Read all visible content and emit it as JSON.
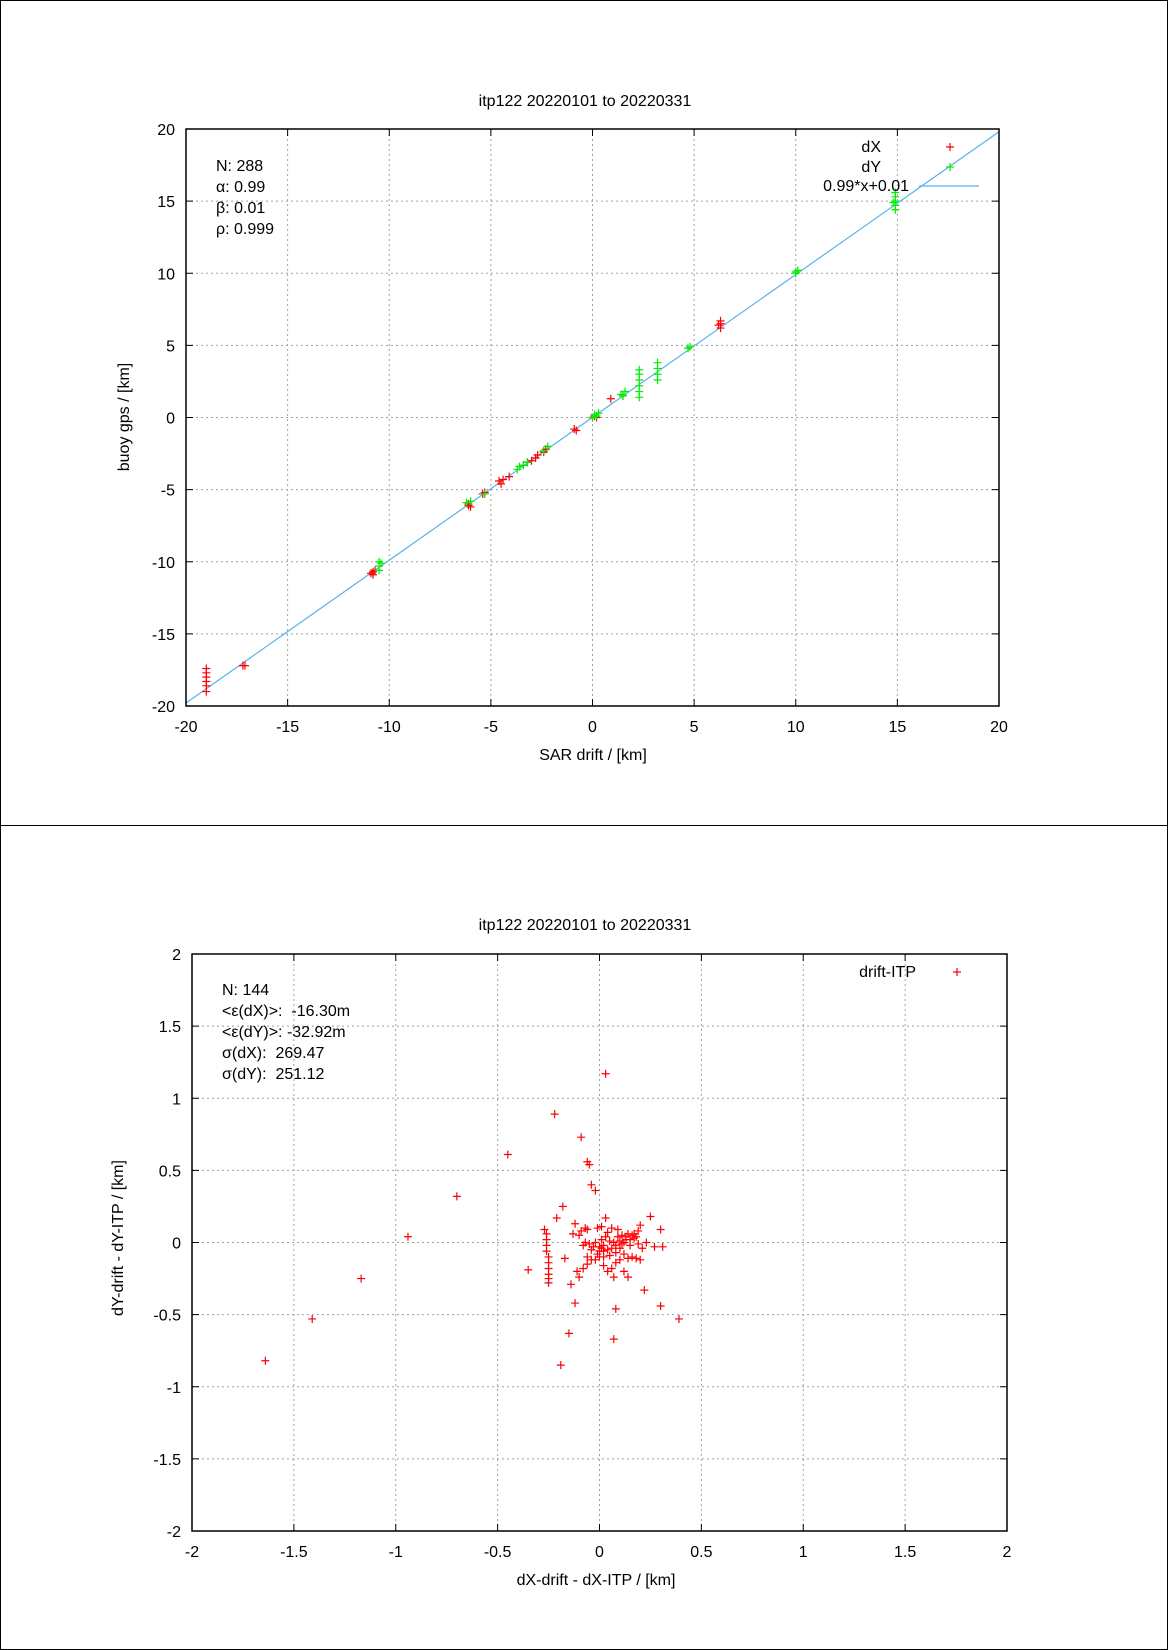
{
  "chart_data": [
    {
      "type": "scatter",
      "title": "itp122 20220101 to 20220331",
      "xlabel": "SAR drift / [km]",
      "ylabel": "buoy gps / [km]",
      "xlim": [
        -20,
        20
      ],
      "ylim": [
        -20,
        20
      ],
      "xticks": [
        -20,
        -15,
        -10,
        -5,
        0,
        5,
        10,
        15,
        20
      ],
      "yticks": [
        -20,
        -15,
        -10,
        -5,
        0,
        5,
        10,
        15,
        20
      ],
      "grid": true,
      "legend_position": "top-right",
      "annotations": [
        "N: 288",
        "α: 0.99",
        "β: 0.01",
        "ρ: 0.999"
      ],
      "fit": {
        "label": "0.99*x+0.01",
        "slope": 0.99,
        "intercept": 0.01,
        "color": "#56b4e9"
      },
      "series": [
        {
          "name": "dX",
          "color": "#ff0000",
          "points": [
            [
              -19.0,
              -19.0
            ],
            [
              -19.0,
              -18.6
            ],
            [
              -19.0,
              -18.3
            ],
            [
              -19.0,
              -18.0
            ],
            [
              -19.0,
              -17.7
            ],
            [
              -19.0,
              -17.4
            ],
            [
              -17.2,
              -17.2
            ],
            [
              -17.1,
              -17.2
            ],
            [
              -10.8,
              -10.7
            ],
            [
              -10.8,
              -10.9
            ],
            [
              -10.7,
              -10.6
            ],
            [
              -10.9,
              -10.8
            ],
            [
              -6.1,
              -6.1
            ],
            [
              -6.0,
              -6.2
            ],
            [
              -6.1,
              -6.0
            ],
            [
              -5.4,
              -5.3
            ],
            [
              -5.3,
              -5.2
            ],
            [
              -4.5,
              -4.6
            ],
            [
              -4.4,
              -4.3
            ],
            [
              -4.6,
              -4.4
            ],
            [
              -4.1,
              -4.1
            ],
            [
              -3.4,
              -3.3
            ],
            [
              -3.2,
              -3.1
            ],
            [
              -3.0,
              -3.0
            ],
            [
              -2.8,
              -2.8
            ],
            [
              -2.7,
              -2.6
            ],
            [
              -2.4,
              -2.4
            ],
            [
              -2.3,
              -2.2
            ],
            [
              -0.9,
              -0.8
            ],
            [
              -0.8,
              -0.9
            ],
            [
              0.0,
              0.0
            ],
            [
              0.1,
              0.1
            ],
            [
              0.2,
              0.0
            ],
            [
              0.9,
              1.3
            ],
            [
              1.5,
              1.5
            ],
            [
              6.3,
              6.2
            ],
            [
              6.3,
              6.5
            ],
            [
              6.3,
              6.7
            ],
            [
              6.2,
              6.4
            ]
          ]
        },
        {
          "name": "dY",
          "color": "#00ee00",
          "points": [
            [
              -10.5,
              -10.0
            ],
            [
              -10.5,
              -10.3
            ],
            [
              -10.5,
              -10.6
            ],
            [
              -10.4,
              -10.1
            ],
            [
              -6.2,
              -5.9
            ],
            [
              -6.0,
              -5.8
            ],
            [
              -5.3,
              -5.3
            ],
            [
              -3.7,
              -3.6
            ],
            [
              -3.6,
              -3.4
            ],
            [
              -3.4,
              -3.3
            ],
            [
              -3.2,
              -3.1
            ],
            [
              -2.4,
              -2.3
            ],
            [
              -2.2,
              -2.0
            ],
            [
              0.0,
              0.0
            ],
            [
              0.1,
              0.2
            ],
            [
              0.2,
              0.1
            ],
            [
              0.3,
              0.3
            ],
            [
              1.5,
              1.5
            ],
            [
              1.6,
              1.8
            ],
            [
              1.4,
              1.6
            ],
            [
              2.3,
              1.4
            ],
            [
              2.3,
              1.8
            ],
            [
              2.3,
              2.2
            ],
            [
              2.3,
              2.6
            ],
            [
              2.3,
              3.0
            ],
            [
              2.3,
              3.3
            ],
            [
              3.2,
              2.6
            ],
            [
              3.2,
              3.0
            ],
            [
              3.2,
              3.4
            ],
            [
              3.2,
              3.8
            ],
            [
              4.7,
              4.8
            ],
            [
              4.8,
              4.9
            ],
            [
              10.0,
              10.0
            ],
            [
              10.1,
              10.2
            ],
            [
              10.0,
              10.1
            ],
            [
              14.9,
              14.4
            ],
            [
              14.9,
              14.7
            ],
            [
              14.9,
              15.0
            ],
            [
              14.9,
              15.3
            ],
            [
              14.9,
              15.6
            ],
            [
              14.8,
              14.9
            ]
          ]
        }
      ]
    },
    {
      "type": "scatter",
      "title": "itp122 20220101 to 20220331",
      "xlabel": "dX-drift - dX-ITP / [km]",
      "ylabel": "dY-drift - dY-ITP / [km]",
      "xlim": [
        -2,
        2
      ],
      "ylim": [
        -2,
        2
      ],
      "xticks": [
        -2,
        -1.5,
        -1,
        -0.5,
        0,
        0.5,
        1,
        1.5,
        2
      ],
      "yticks": [
        -2,
        -1.5,
        -1,
        -0.5,
        0,
        0.5,
        1,
        1.5,
        2
      ],
      "grid": true,
      "legend_position": "top-right",
      "annotations": [
        "N: 144",
        "<ε(dX)>:  -16.30m",
        "<ε(dY)>: -32.92m",
        "σ(dX):  269.47",
        "σ(dY):  251.12"
      ],
      "series": [
        {
          "name": "drift-ITP",
          "color": "#ff0000",
          "points": [
            [
              -1.64,
              -0.82
            ],
            [
              -1.41,
              -0.53
            ],
            [
              -1.17,
              -0.25
            ],
            [
              -0.94,
              0.04
            ],
            [
              -0.7,
              0.32
            ],
            [
              -0.45,
              0.61
            ],
            [
              -0.22,
              0.89
            ],
            [
              0.03,
              1.17
            ],
            [
              -0.09,
              0.73
            ],
            [
              -0.06,
              0.56
            ],
            [
              -0.05,
              0.54
            ],
            [
              -0.04,
              0.4
            ],
            [
              -0.02,
              0.36
            ],
            [
              -0.18,
              0.25
            ],
            [
              -0.21,
              0.17
            ],
            [
              -0.27,
              0.09
            ],
            [
              -0.26,
              0.06
            ],
            [
              -0.26,
              0.02
            ],
            [
              -0.26,
              -0.02
            ],
            [
              -0.26,
              -0.06
            ],
            [
              -0.25,
              -0.1
            ],
            [
              -0.25,
              -0.14
            ],
            [
              -0.25,
              -0.18
            ],
            [
              -0.25,
              -0.22
            ],
            [
              -0.25,
              -0.25
            ],
            [
              -0.25,
              -0.28
            ],
            [
              -0.35,
              -0.19
            ],
            [
              -0.17,
              -0.11
            ],
            [
              -0.14,
              -0.29
            ],
            [
              -0.12,
              -0.42
            ],
            [
              -0.15,
              -0.63
            ],
            [
              -0.19,
              -0.85
            ],
            [
              -0.12,
              0.13
            ],
            [
              -0.1,
              0.05
            ],
            [
              -0.08,
              -0.02
            ],
            [
              -0.06,
              -0.1
            ],
            [
              -0.1,
              -0.24
            ],
            [
              -0.08,
              -0.18
            ],
            [
              -0.06,
              -0.15
            ],
            [
              -0.04,
              -0.12
            ],
            [
              -0.02,
              -0.12
            ],
            [
              0.0,
              -0.1
            ],
            [
              0.02,
              -0.06
            ],
            [
              0.0,
              -0.03
            ],
            [
              0.01,
              -0.04
            ],
            [
              0.02,
              -0.02
            ],
            [
              0.04,
              -0.05
            ],
            [
              0.05,
              0.01
            ],
            [
              0.06,
              -0.04
            ],
            [
              0.07,
              0.0
            ],
            [
              0.08,
              -0.02
            ],
            [
              0.09,
              0.04
            ],
            [
              0.1,
              0.01
            ],
            [
              0.11,
              0.05
            ],
            [
              0.12,
              0.0
            ],
            [
              0.13,
              0.04
            ],
            [
              0.14,
              0.06
            ],
            [
              0.15,
              0.02
            ],
            [
              0.16,
              0.05
            ],
            [
              0.17,
              0.03
            ],
            [
              0.18,
              0.04
            ],
            [
              0.19,
              -0.01
            ],
            [
              0.12,
              -0.08
            ],
            [
              0.14,
              -0.11
            ],
            [
              0.16,
              -0.1
            ],
            [
              0.18,
              -0.11
            ],
            [
              0.2,
              -0.12
            ],
            [
              0.06,
              -0.18
            ],
            [
              0.08,
              -0.14
            ],
            [
              0.1,
              -0.12
            ],
            [
              0.04,
              -0.2
            ],
            [
              0.02,
              -0.16
            ],
            [
              0.07,
              -0.24
            ],
            [
              0.12,
              -0.2
            ],
            [
              0.14,
              -0.24
            ],
            [
              0.22,
              -0.33
            ],
            [
              0.3,
              -0.44
            ],
            [
              0.39,
              -0.53
            ],
            [
              0.08,
              -0.46
            ],
            [
              0.07,
              -0.67
            ],
            [
              0.25,
              0.18
            ],
            [
              0.3,
              0.09
            ],
            [
              0.31,
              -0.03
            ],
            [
              0.27,
              -0.03
            ],
            [
              0.23,
              0.0
            ],
            [
              0.2,
              0.12
            ],
            [
              0.03,
              0.17
            ],
            [
              0.01,
              0.11
            ],
            [
              -0.01,
              0.1
            ],
            [
              -0.06,
              0.09
            ],
            [
              -0.07,
              0.1
            ],
            [
              -0.09,
              0.08
            ],
            [
              -0.05,
              -0.01
            ],
            [
              -0.04,
              -0.05
            ],
            [
              -0.01,
              -0.08
            ],
            [
              0.0,
              -0.06
            ],
            [
              0.02,
              -0.1
            ],
            [
              0.05,
              -0.09
            ],
            [
              0.08,
              -0.07
            ],
            [
              0.1,
              -0.04
            ],
            [
              0.03,
              0.04
            ],
            [
              -0.02,
              0.0
            ],
            [
              -0.03,
              -0.03
            ],
            [
              0.01,
              0.02
            ],
            [
              0.04,
              0.07
            ],
            [
              0.06,
              0.1
            ],
            [
              0.09,
              0.09
            ],
            [
              -0.11,
              -0.2
            ],
            [
              -0.13,
              0.06
            ],
            [
              -0.07,
              0.0
            ],
            [
              0.11,
              -0.01
            ],
            [
              0.13,
              0.02
            ],
            [
              0.15,
              -0.02
            ],
            [
              0.17,
              0.06
            ],
            [
              0.19,
              0.08
            ],
            [
              0.21,
              -0.04
            ]
          ]
        }
      ]
    }
  ]
}
